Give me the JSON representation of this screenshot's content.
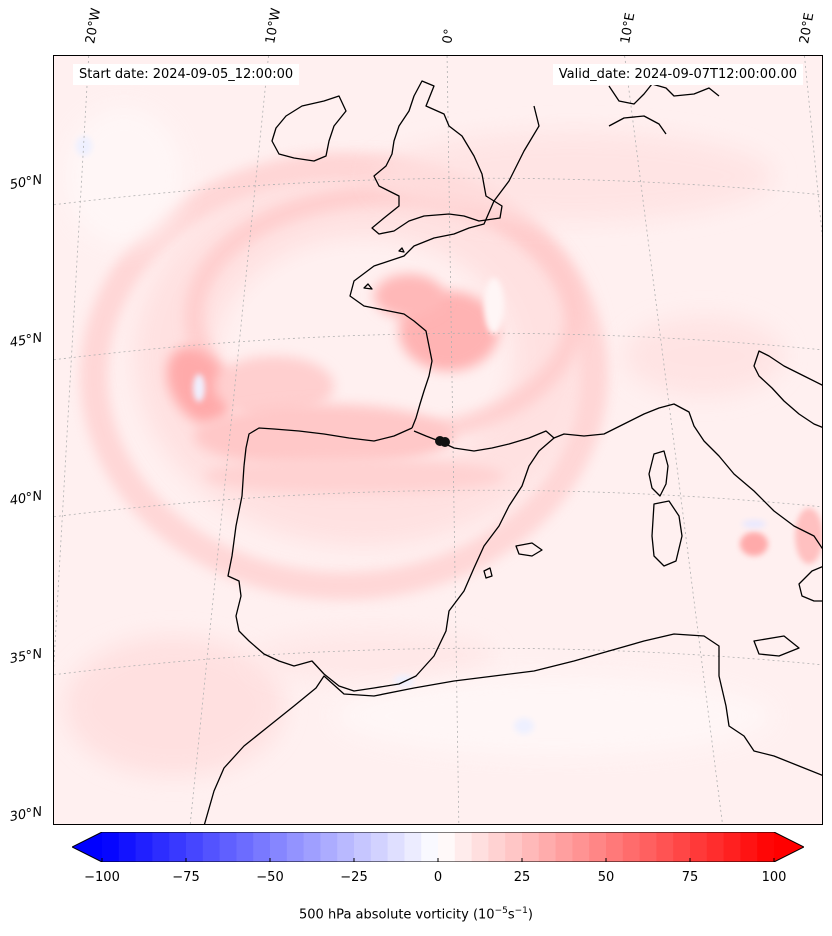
{
  "header": {
    "start_date": "Start date: 2024-09-05_12:00:00",
    "valid_date": "Valid_date: 2024-09-07T12:00:00.00"
  },
  "map": {
    "projection": "conic",
    "background_field": "500 hPa absolute vorticity",
    "coastline_color": "#000000",
    "gridline_color": "#b0b0b0",
    "lon_labels": [
      "20°W",
      "10°W",
      "0°",
      "10°E",
      "20°E"
    ],
    "lat_labels": [
      "50°N",
      "45°N",
      "40°N",
      "35°N",
      "30°N"
    ],
    "marker": "black dot",
    "features": [
      {
        "name": "vorticity-max-bay-of-biscay",
        "value": 40
      },
      {
        "name": "vorticity-max-west-atlantic",
        "value": 45
      },
      {
        "name": "vorticity-max-brittany",
        "value": 30
      },
      {
        "name": "vorticity-max-italy",
        "value": 35
      }
    ]
  },
  "colorbar": {
    "vmin": -100,
    "vmax": 100,
    "levels": 40,
    "extend": "both",
    "cmap": "bwr",
    "tick_labels": [
      "−100",
      "−75",
      "−50",
      "−25",
      "0",
      "25",
      "50",
      "75",
      "100"
    ],
    "tick_values": [
      -100,
      -75,
      -50,
      -25,
      0,
      25,
      50,
      75,
      100
    ],
    "label_text": "500 hPa absolute vorticity (10",
    "label_exp1": "−5",
    "label_mid": "s",
    "label_exp2": "−1",
    "label_end": ")"
  }
}
